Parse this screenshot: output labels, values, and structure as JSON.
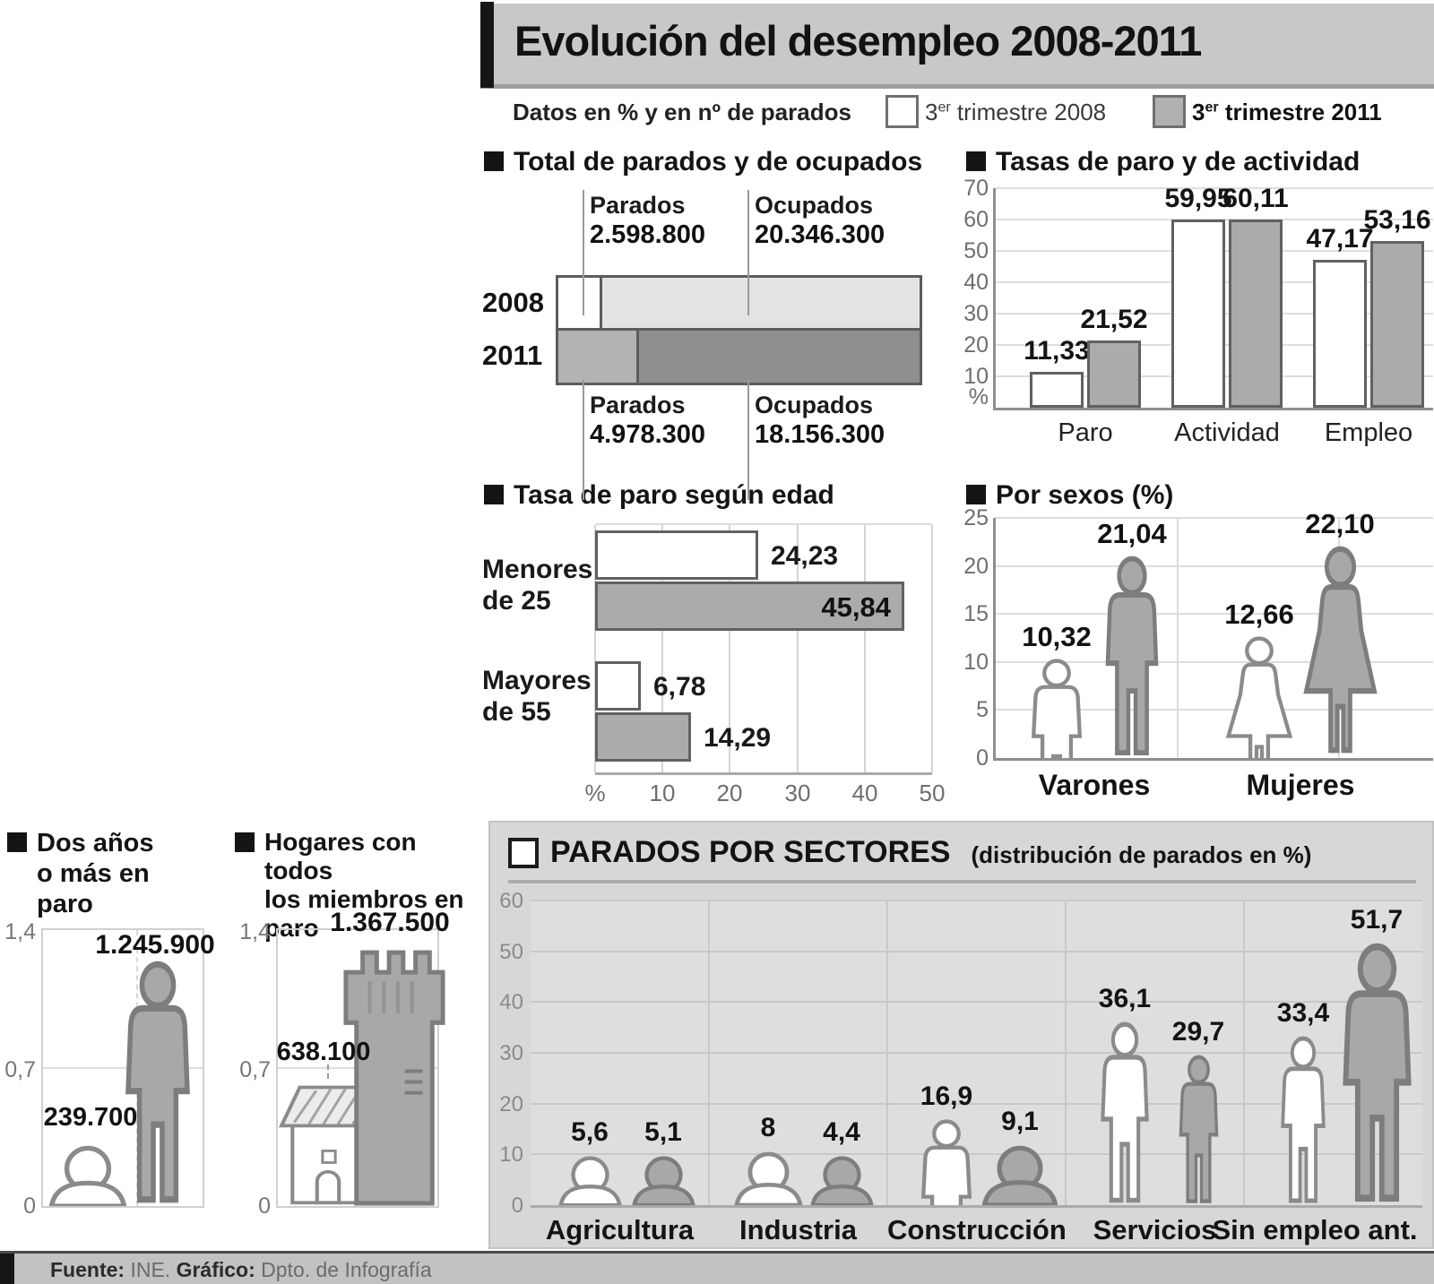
{
  "title": "Evolución del desempleo 2008-2011",
  "legend": {
    "note": "Datos en % y en nº de parados",
    "items": [
      {
        "num": "3",
        "sup": "er",
        "rest": " trimestre 2008",
        "color": "#ffffff"
      },
      {
        "num": "3",
        "sup": "er",
        "rest": " trimestre 2011",
        "color": "#b1b1b1"
      }
    ]
  },
  "palette": {
    "series_2008": "#ffffff",
    "series_2011": "#b1b1b1",
    "titlebar_bg": "#c8c8c8",
    "panel_bg": "#d7d7d7"
  },
  "footer": {
    "fuente_label": "Fuente:",
    "fuente_value": " INE. ",
    "grafico_label": "Gráfico:",
    "grafico_value": " Dpto. de Infografía"
  },
  "chart_data": [
    {
      "id": "totales",
      "type": "bar",
      "orientation": "horizontal-stacked",
      "title": "Total de parados y de ocupados",
      "categories": [
        "2008",
        "2011"
      ],
      "series": [
        {
          "name": "Parados",
          "values": [
            2598800,
            4978300
          ],
          "labels": [
            "2.598.800",
            "4.978.300"
          ]
        },
        {
          "name": "Ocupados",
          "values": [
            20346300,
            18156300
          ],
          "labels": [
            "20.346.300",
            "18.156.300"
          ]
        }
      ]
    },
    {
      "id": "tasas",
      "type": "bar",
      "title": "Tasas de paro y de actividad",
      "categories": [
        "Paro",
        "Actividad",
        "Empleo"
      ],
      "ylim": [
        0,
        70
      ],
      "yticks": [
        "70",
        "60",
        "50",
        "40",
        "30",
        "20",
        "10",
        "%"
      ],
      "series": [
        {
          "name": "3er trimestre 2008",
          "values": [
            11.33,
            59.95,
            47.17
          ],
          "labels": [
            "11,33",
            "59,95",
            "47,17"
          ]
        },
        {
          "name": "3er trimestre 2011",
          "values": [
            21.52,
            60.11,
            53.16
          ],
          "labels": [
            "21,52",
            "60,11",
            "53,16"
          ]
        }
      ]
    },
    {
      "id": "edad",
      "type": "bar",
      "orientation": "horizontal",
      "title": "Tasa de paro según edad",
      "categories": [
        "Menores\nde 25",
        "Mayores\nde 55"
      ],
      "xlim": [
        0,
        50
      ],
      "xticks": [
        "%",
        "10",
        "20",
        "30",
        "40",
        "50"
      ],
      "series": [
        {
          "name": "3er trimestre 2008",
          "values": [
            24.23,
            6.78
          ],
          "labels": [
            "24,23",
            "6,78"
          ]
        },
        {
          "name": "3er trimestre 2011",
          "values": [
            45.84,
            14.29
          ],
          "labels": [
            "45,84",
            "14,29"
          ]
        }
      ]
    },
    {
      "id": "sexos",
      "type": "pictogram",
      "title": "Por sexos (%)",
      "categories": [
        "Varones",
        "Mujeres"
      ],
      "ylim": [
        0,
        25
      ],
      "yticks": [
        "25",
        "20",
        "15",
        "10",
        "5",
        "0"
      ],
      "series": [
        {
          "name": "3er trimestre 2008",
          "values": [
            10.32,
            12.66
          ],
          "labels": [
            "10,32",
            "12,66"
          ]
        },
        {
          "name": "3er trimestre 2011",
          "values": [
            21.04,
            22.1
          ],
          "labels": [
            "21,04",
            "22,10"
          ]
        }
      ]
    },
    {
      "id": "dos_anos",
      "type": "pictogram",
      "title": "Dos años\no más en\nparo",
      "ylim": [
        0,
        1.4
      ],
      "yticks": [
        "1,4",
        "0,7",
        "0"
      ],
      "series": [
        {
          "name": "3er trimestre 2008",
          "values": [
            239700
          ],
          "labels": [
            "239.700"
          ]
        },
        {
          "name": "3er trimestre 2011",
          "values": [
            1245900
          ],
          "labels": [
            "1.245.900"
          ]
        }
      ]
    },
    {
      "id": "hogares",
      "type": "pictogram",
      "title": "Hogares con todos\nlos miembros en\nparo",
      "ylim": [
        0,
        1.4
      ],
      "yticks": [
        "1,4",
        "0,7",
        "0"
      ],
      "series": [
        {
          "name": "3er trimestre 2008",
          "values": [
            638100
          ],
          "labels": [
            "638.100"
          ]
        },
        {
          "name": "3er trimestre 2011",
          "values": [
            1367500
          ],
          "labels": [
            "1.367.500"
          ]
        }
      ]
    },
    {
      "id": "sectores",
      "type": "pictogram",
      "title": "PARADOS POR SECTORES",
      "subtitle": "(distribución de parados en %)",
      "categories": [
        "Agricultura",
        "Industria",
        "Construcción",
        "Servicios",
        "Sin empleo ant."
      ],
      "ylim": [
        0,
        60
      ],
      "yticks": [
        "60",
        "50",
        "40",
        "30",
        "20",
        "10",
        "0"
      ],
      "series": [
        {
          "name": "3er trimestre 2008",
          "values": [
            5.6,
            8,
            16.9,
            36.1,
            33.4
          ],
          "labels": [
            "5,6",
            "8",
            "16,9",
            "36,1",
            "33,4"
          ]
        },
        {
          "name": "3er trimestre 2011",
          "values": [
            5.1,
            4.4,
            9.1,
            29.7,
            51.7
          ],
          "labels": [
            "5,1",
            "4,4",
            "9,1",
            "29,7",
            "51,7"
          ]
        }
      ]
    }
  ]
}
